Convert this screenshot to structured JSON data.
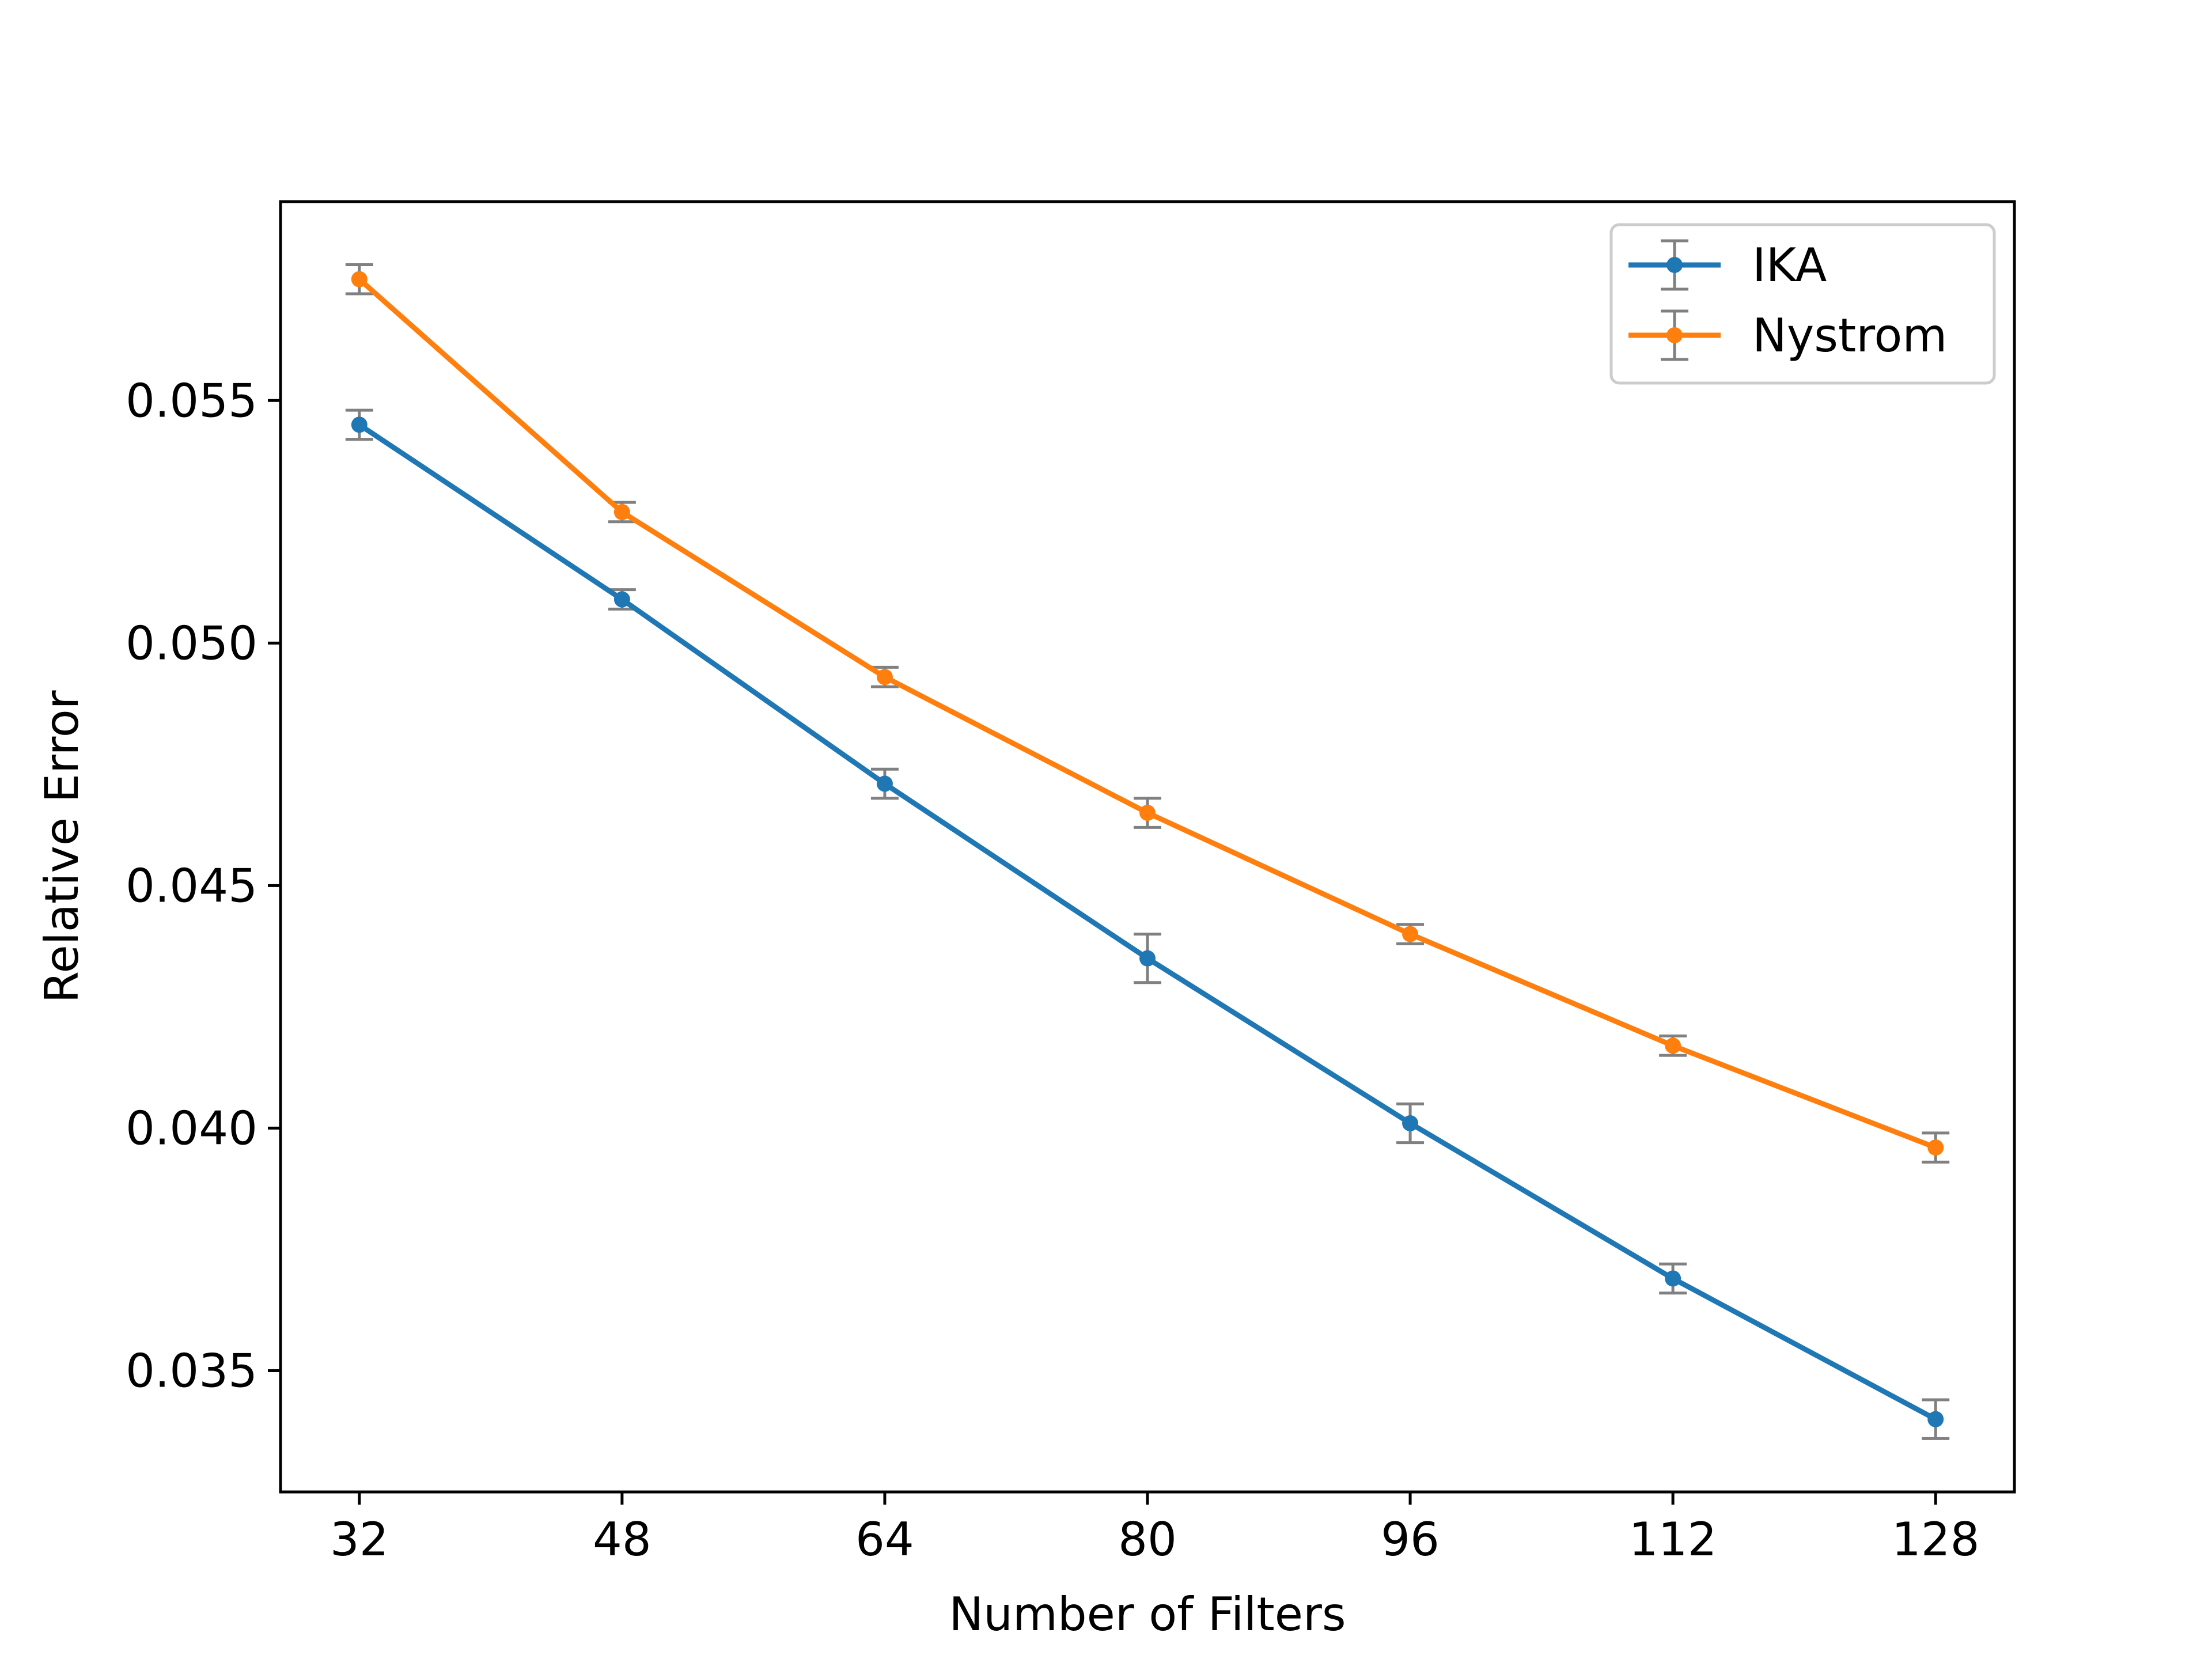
{
  "chart_data": {
    "type": "line",
    "title": "",
    "xlabel": "Number of Filters",
    "ylabel": "Relative Error",
    "x": [
      32,
      48,
      64,
      80,
      96,
      112,
      128
    ],
    "xticks": [
      "32",
      "48",
      "64",
      "80",
      "96",
      "112",
      "128"
    ],
    "yticks": [
      "0.035",
      "0.040",
      "0.045",
      "0.050",
      "0.055"
    ],
    "ytick_values": [
      0.035,
      0.04,
      0.045,
      0.05,
      0.055
    ],
    "xlim": [
      27.2,
      132.8
    ],
    "ylim": [
      0.0325,
      0.0591
    ],
    "grid": false,
    "legend_position": "top-right",
    "errorbar_color": "#808080",
    "series": [
      {
        "name": "IKA",
        "color": "#1f77b4",
        "values": [
          0.0545,
          0.0509,
          0.0471,
          0.0435,
          0.0401,
          0.0369,
          0.034
        ],
        "errors": [
          0.0003,
          0.0002,
          0.0003,
          0.0005,
          0.0004,
          0.0003,
          0.0004
        ]
      },
      {
        "name": "Nystrom",
        "color": "#ff7f0e",
        "values": [
          0.0575,
          0.0527,
          0.0493,
          0.0465,
          0.044,
          0.0417,
          0.0396
        ],
        "errors": [
          0.0003,
          0.0002,
          0.0002,
          0.0003,
          0.0002,
          0.0002,
          0.0003
        ]
      }
    ]
  }
}
